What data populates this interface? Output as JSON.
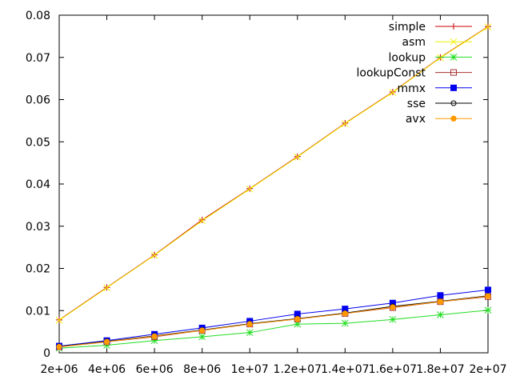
{
  "chart_data": {
    "type": "line",
    "title": "",
    "xlabel": "",
    "ylabel": "",
    "xlim": [
      2000000,
      20000000
    ],
    "ylim": [
      0,
      0.08
    ],
    "grid": false,
    "legend_position": "top-right",
    "x": [
      2000000,
      4000000,
      6000000,
      8000000,
      10000000,
      12000000,
      14000000,
      16000000,
      18000000,
      20000000
    ],
    "xticks": [
      {
        "value": 2000000,
        "label": "2e+06"
      },
      {
        "value": 4000000,
        "label": "4e+06"
      },
      {
        "value": 6000000,
        "label": "6e+06"
      },
      {
        "value": 8000000,
        "label": "8e+06"
      },
      {
        "value": 10000000,
        "label": "1e+07"
      },
      {
        "value": 12000000,
        "label": "1.2e+07"
      },
      {
        "value": 14000000,
        "label": "1.4e+07"
      },
      {
        "value": 16000000,
        "label": "1.6e+07"
      },
      {
        "value": 18000000,
        "label": "1.8e+07"
      },
      {
        "value": 20000000,
        "label": "2e+07"
      }
    ],
    "yticks": [
      {
        "value": 0,
        "label": "0"
      },
      {
        "value": 0.01,
        "label": "0.01"
      },
      {
        "value": 0.02,
        "label": "0.02"
      },
      {
        "value": 0.03,
        "label": "0.03"
      },
      {
        "value": 0.04,
        "label": "0.04"
      },
      {
        "value": 0.05,
        "label": "0.05"
      },
      {
        "value": 0.06,
        "label": "0.06"
      },
      {
        "value": 0.07,
        "label": "0.07"
      },
      {
        "value": 0.08,
        "label": "0.08"
      }
    ],
    "series": [
      {
        "name": "simple",
        "color": "#cc0000",
        "marker": "plus",
        "values": [
          0.0078,
          0.0155,
          0.0232,
          0.0315,
          0.0389,
          0.0465,
          0.0544,
          0.0618,
          0.07,
          0.0773
        ]
      },
      {
        "name": "asm",
        "color": "#f0f000",
        "marker": "cross",
        "values": [
          0.0077,
          0.0154,
          0.0231,
          0.0313,
          0.0388,
          0.0464,
          0.0543,
          0.0617,
          0.0699,
          0.0772
        ]
      },
      {
        "name": "lookup",
        "color": "#22dd22",
        "marker": "star",
        "values": [
          0.0011,
          0.0018,
          0.0029,
          0.0038,
          0.0048,
          0.0068,
          0.007,
          0.0079,
          0.009,
          0.0101
        ]
      },
      {
        "name": "lookupConst",
        "color": "#a83232",
        "marker": "box",
        "values": [
          0.0014,
          0.0026,
          0.0038,
          0.0053,
          0.0068,
          0.008,
          0.0093,
          0.0107,
          0.0121,
          0.0133
        ]
      },
      {
        "name": "mmx",
        "color": "#0000ee",
        "marker": "filled-box",
        "values": [
          0.0016,
          0.0029,
          0.0044,
          0.0059,
          0.0075,
          0.0092,
          0.0104,
          0.0118,
          0.0136,
          0.0149
        ]
      },
      {
        "name": "sse",
        "color": "#000000",
        "marker": "circle",
        "values": [
          0.0015,
          0.0027,
          0.004,
          0.0054,
          0.0069,
          0.0081,
          0.0094,
          0.011,
          0.0122,
          0.0135
        ]
      },
      {
        "name": "avx",
        "color": "#ff9900",
        "marker": "filled-circle",
        "values": [
          0.0014,
          0.0026,
          0.0039,
          0.0053,
          0.0068,
          0.008,
          0.0093,
          0.0108,
          0.0121,
          0.0134
        ]
      }
    ]
  }
}
